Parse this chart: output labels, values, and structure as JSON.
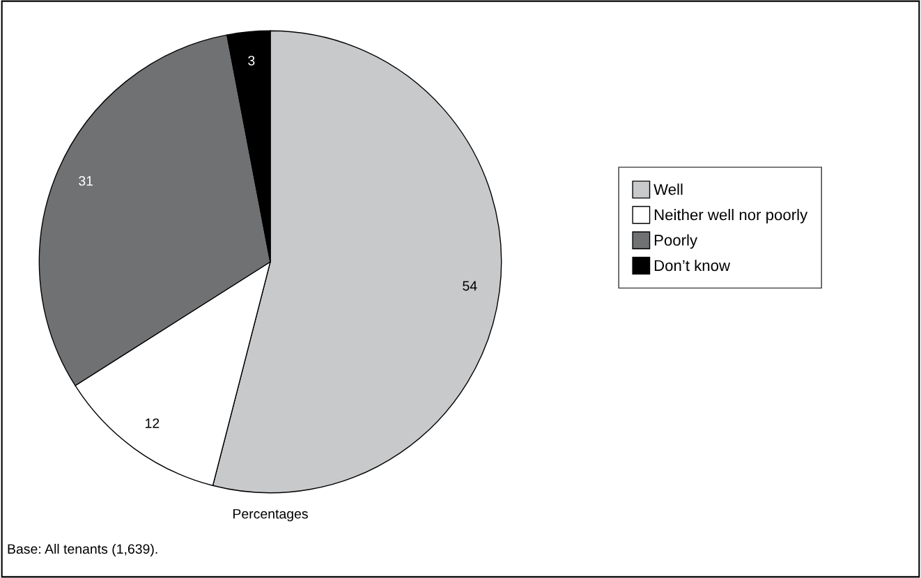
{
  "chart_data": {
    "type": "pie",
    "xlabel": "Percentages",
    "categories": [
      "Well",
      "Neither well nor poorly",
      "Poorly",
      "Don’t know"
    ],
    "values": [
      54,
      12,
      31,
      3
    ],
    "colors": [
      "#c8c9cb",
      "#ffffff",
      "#707173",
      "#000000"
    ],
    "data_labels": true,
    "legend": "right",
    "annotations": [
      "Base: All tenants (1,639)."
    ]
  }
}
